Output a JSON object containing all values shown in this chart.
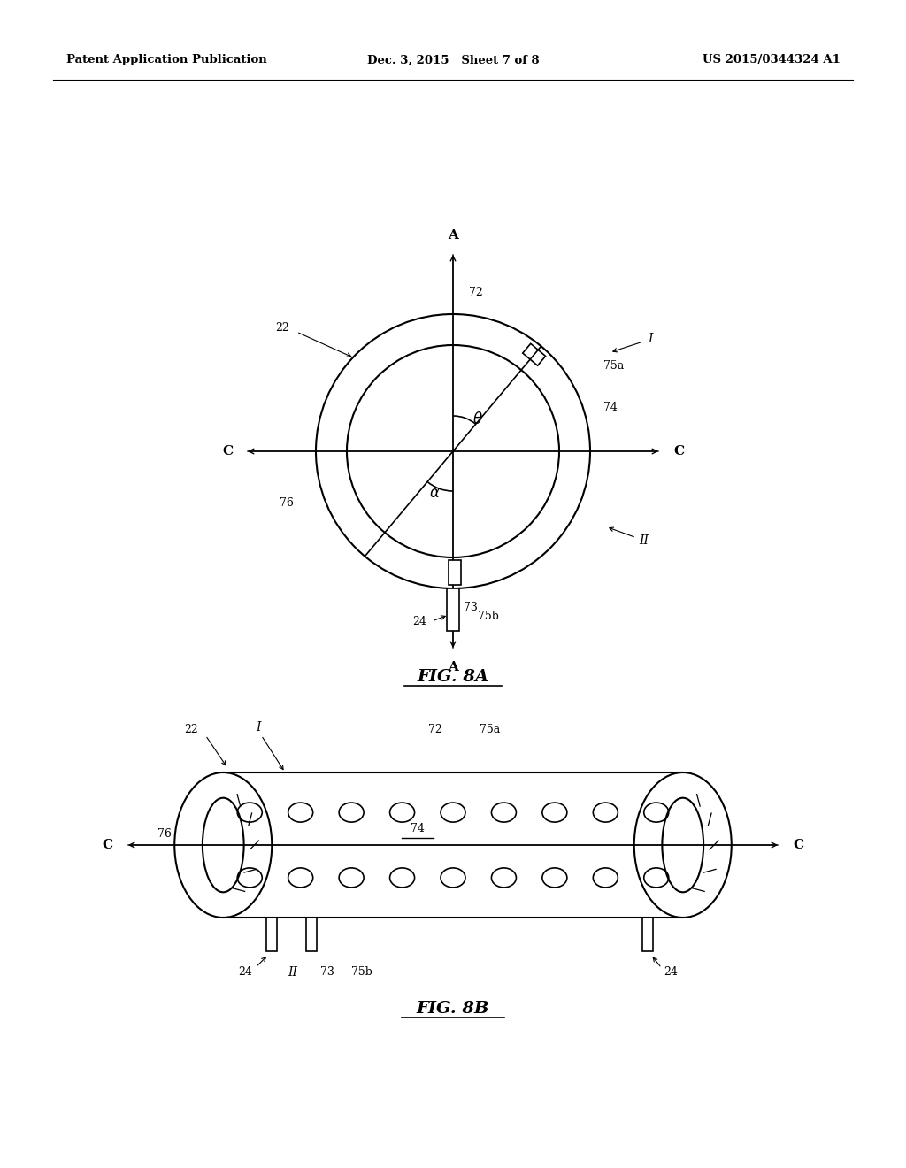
{
  "bg_color": "#ffffff",
  "line_color": "#000000",
  "header_left": "Patent Application Publication",
  "header_mid": "Dec. 3, 2015   Sheet 7 of 8",
  "header_right": "US 2015/0344324 A1",
  "fig8a_label": "FIG. 8A",
  "fig8b_label": "FIG. 8B"
}
